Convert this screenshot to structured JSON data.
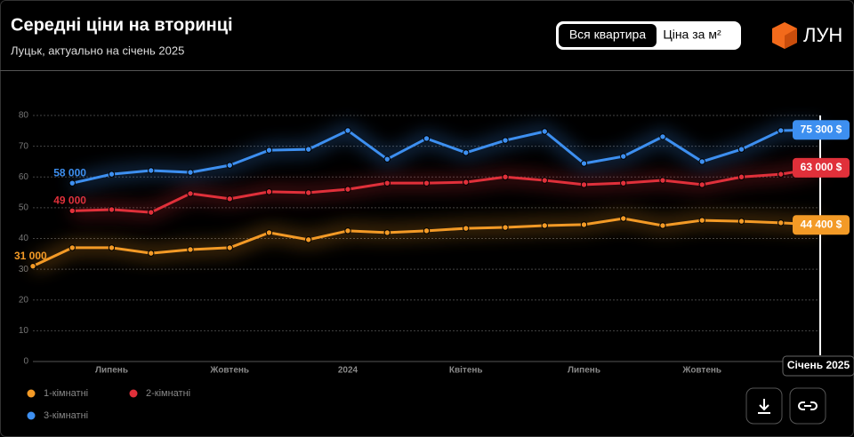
{
  "chart_data": {
    "type": "line",
    "title": "Середні ціни на вторинці",
    "subtitle": "Луцьк, актуально на січень 2025",
    "categories": [
      null,
      null,
      "Липень",
      null,
      null,
      "Жовтень",
      null,
      null,
      "2024",
      null,
      null,
      "Квітень",
      null,
      null,
      "Липень",
      null,
      null,
      "Жовтень",
      null,
      null,
      "Січень 2025"
    ],
    "series": [
      {
        "name": "1-кімнатні",
        "color": "#f39a26",
        "values": [
          31,
          37,
          37,
          35.2,
          36.4,
          37,
          41.9,
          39.6,
          42.5,
          41.9,
          42.5,
          43.3,
          43.6,
          44.2,
          44.5,
          46.5,
          44.2,
          45.9,
          45.6,
          45.1,
          44.4
        ],
        "value_labels": [
          "31 000",
          null,
          null,
          null,
          null,
          null,
          null,
          null,
          null,
          null,
          null,
          null,
          null,
          null,
          null,
          null,
          null,
          null,
          null,
          null,
          "44 400 $"
        ]
      },
      {
        "name": "2-кімнатні",
        "color": "#e0303a",
        "values": [
          null,
          49,
          49.4,
          48.5,
          54.6,
          52.9,
          55.2,
          54.9,
          56,
          58,
          58,
          58.3,
          60,
          58.9,
          57.5,
          58,
          58.9,
          57.5,
          60,
          60.9,
          63
        ],
        "value_labels": [
          null,
          "49 000",
          null,
          null,
          null,
          null,
          null,
          null,
          null,
          null,
          null,
          null,
          null,
          null,
          null,
          null,
          null,
          null,
          null,
          null,
          "63 000 $"
        ]
      },
      {
        "name": "3-кімнатні",
        "color": "#3d8ff0",
        "values": [
          null,
          58,
          60.9,
          62.1,
          61.5,
          63.8,
          68.7,
          69,
          75.1,
          65.8,
          72.5,
          67.9,
          71.9,
          74.8,
          64.4,
          66.7,
          73.1,
          65,
          69,
          75.1,
          75.3
        ],
        "value_labels": [
          null,
          "58 000",
          null,
          null,
          null,
          null,
          null,
          null,
          null,
          null,
          null,
          null,
          null,
          null,
          null,
          null,
          null,
          null,
          null,
          null,
          "75 300 $"
        ]
      }
    ],
    "ylim": [
      0,
      80
    ],
    "yticks": [
      0,
      10,
      20,
      30,
      40,
      50,
      60,
      70,
      80
    ],
    "grid": true
  },
  "ui": {
    "toggle": [
      "Вся квартира",
      "Ціна за м²"
    ],
    "brand": "ЛУН"
  }
}
